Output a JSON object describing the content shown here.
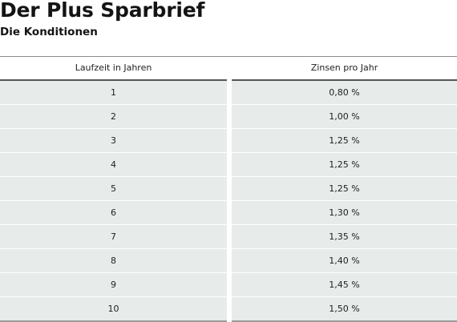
{
  "title": "Der Plus Sparbrief",
  "subtitle": "Die Konditionen",
  "table": {
    "headers": [
      "Laufzeit in Jahren",
      "Zinsen pro Jahr"
    ],
    "rows": [
      [
        "1",
        "0,80 %"
      ],
      [
        "2",
        "1,00 %"
      ],
      [
        "3",
        "1,25 %"
      ],
      [
        "4",
        "1,25 %"
      ],
      [
        "5",
        "1,25 %"
      ],
      [
        "6",
        "1,30 %"
      ],
      [
        "7",
        "1,35 %"
      ],
      [
        "8",
        "1,40 %"
      ],
      [
        "9",
        "1,45 %"
      ],
      [
        "10",
        "1,50 %"
      ]
    ]
  },
  "colors": {
    "row_background": "#e7ebea",
    "header_rule": "#555555",
    "text": "#1f1f1f"
  }
}
